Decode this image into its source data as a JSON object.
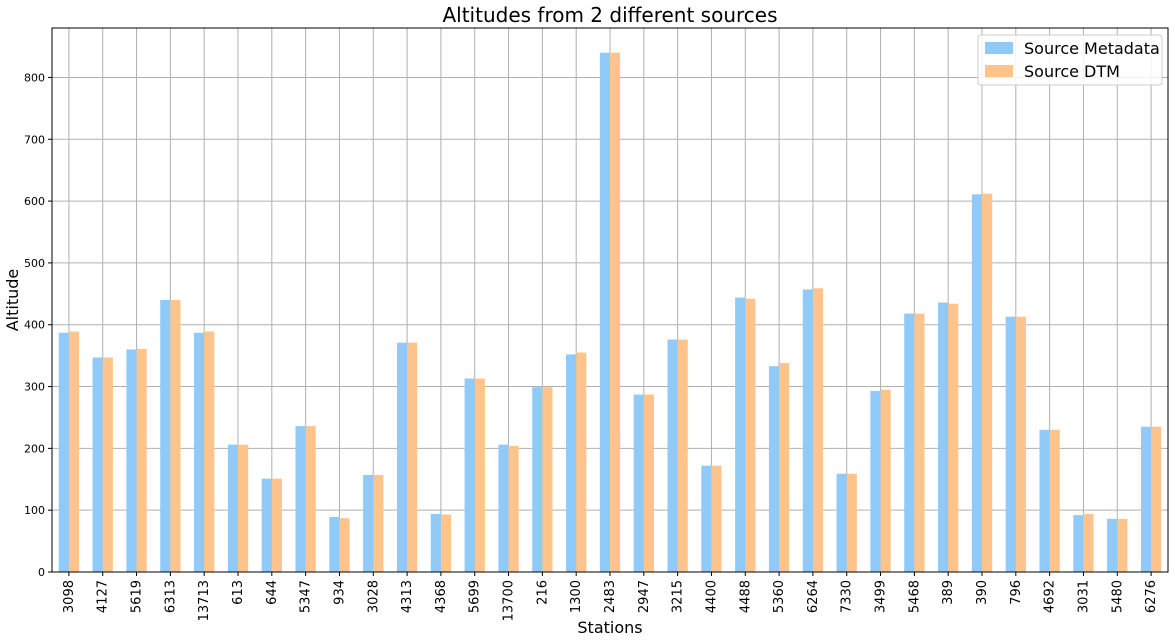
{
  "chart_data": {
    "type": "bar",
    "title": "Altitudes from 2 different sources",
    "xlabel": "Stations",
    "ylabel": "Altitude",
    "ylim": [
      0,
      880
    ],
    "yticks": [
      0,
      100,
      200,
      300,
      400,
      500,
      600,
      700,
      800
    ],
    "grid": true,
    "legend_position": "top-right",
    "categories": [
      "3098",
      "4127",
      "5619",
      "6313",
      "13713",
      "613",
      "644",
      "5347",
      "934",
      "3028",
      "4313",
      "4368",
      "5699",
      "13700",
      "216",
      "1300",
      "2483",
      "2947",
      "3215",
      "4400",
      "4488",
      "5360",
      "6264",
      "7330",
      "3499",
      "5468",
      "389",
      "390",
      "796",
      "4692",
      "3031",
      "5480",
      "6276"
    ],
    "series": [
      {
        "name": "Source Metadata",
        "color": "#90caf9",
        "values": [
          387,
          347,
          360,
          440,
          387,
          206,
          151,
          236,
          89,
          157,
          371,
          94,
          313,
          206,
          299,
          352,
          840,
          287,
          376,
          172,
          444,
          333,
          457,
          159,
          293,
          418,
          436,
          611,
          413,
          230,
          92,
          86,
          235
        ]
      },
      {
        "name": "Source DTM",
        "color": "#ffc48c",
        "values": [
          389,
          347,
          361,
          440,
          389,
          206,
          151,
          236,
          87,
          157,
          371,
          93,
          313,
          204,
          299,
          355,
          840,
          287,
          376,
          172,
          442,
          338,
          459,
          159,
          295,
          418,
          434,
          612,
          413,
          230,
          94,
          86,
          235
        ]
      }
    ]
  }
}
